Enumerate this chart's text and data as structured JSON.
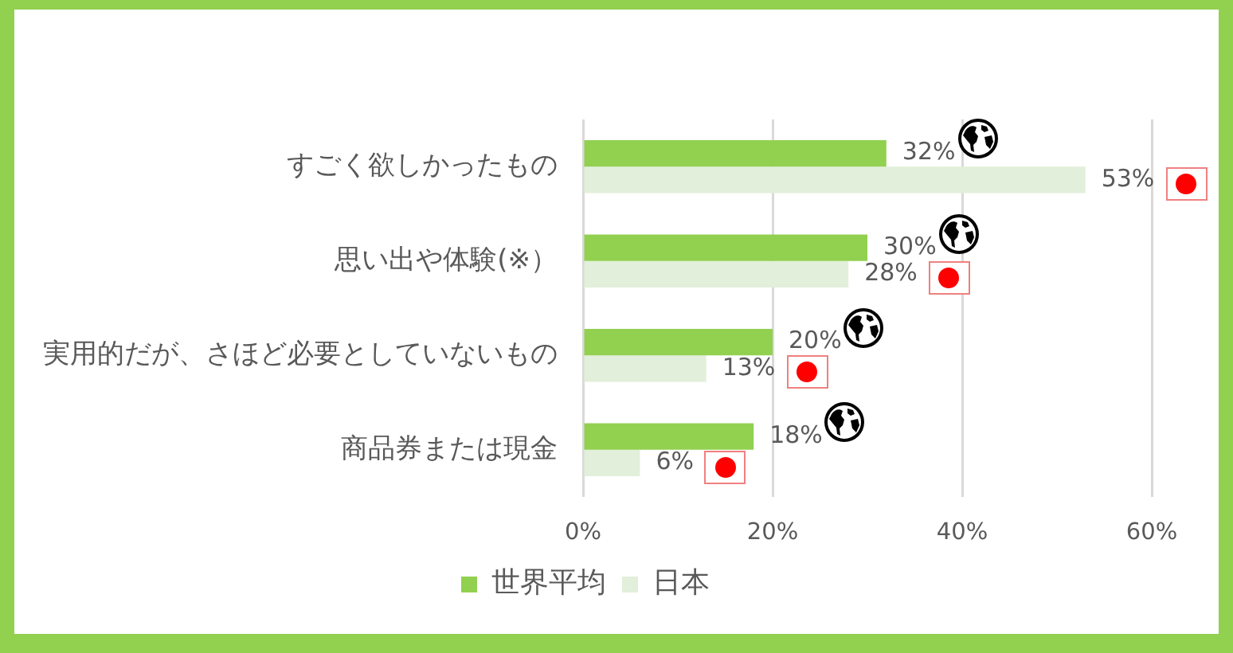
{
  "chart_data": {
    "type": "bar",
    "orientation": "horizontal",
    "categories": [
      "すごく欲しかったもの",
      "思い出や体験(※）",
      "実用的だが、さほど必要としていないもの",
      "商品券または現金"
    ],
    "series": [
      {
        "name": "世界平均",
        "color": "#92d050",
        "values": [
          32,
          30,
          20,
          18
        ],
        "value_labels": [
          "32%",
          "30%",
          "20%",
          "18%"
        ]
      },
      {
        "name": "日本",
        "color": "#e2efda",
        "values": [
          53,
          28,
          13,
          6
        ],
        "value_labels": [
          "53%",
          "28%",
          "13%",
          "6%"
        ]
      }
    ],
    "xlim": [
      0,
      60
    ],
    "xticks": [
      {
        "value": 0,
        "label": "0%"
      },
      {
        "value": 20,
        "label": "20%"
      },
      {
        "value": 40,
        "label": "40%"
      },
      {
        "value": 60,
        "label": "60%"
      }
    ],
    "grid": "x",
    "legend": "bottom"
  }
}
